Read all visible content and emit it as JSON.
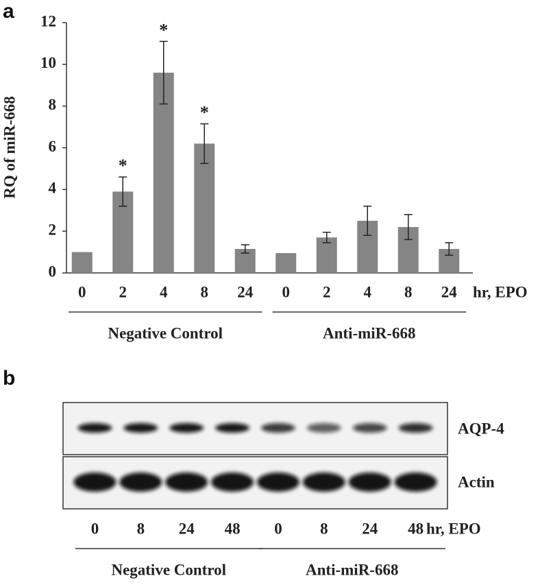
{
  "chart_data": {
    "type": "bar",
    "panel_label": "a",
    "ylabel": "RQ of miR-668",
    "x_unit": "hr, EPO",
    "categories": [
      "0",
      "2",
      "4",
      "8",
      "24",
      "0",
      "2",
      "4",
      "8",
      "24"
    ],
    "groups": [
      "Negative Control",
      "Anti-miR-668"
    ],
    "series": [
      {
        "color": "#858585",
        "values": [
          1.0,
          3.9,
          9.6,
          6.2,
          1.15,
          0.95,
          1.7,
          2.5,
          2.2,
          1.15
        ],
        "errors": [
          0,
          0.7,
          1.5,
          0.95,
          0.2,
          0,
          0.25,
          0.7,
          0.6,
          0.3
        ],
        "markers": [
          null,
          "*",
          "*",
          "*",
          null,
          null,
          null,
          null,
          null,
          null
        ]
      }
    ],
    "ylim": [
      0,
      12
    ],
    "yticks": [
      0,
      2,
      4,
      6,
      8,
      10,
      12
    ],
    "grid": false
  },
  "blot": {
    "panel_label": "b",
    "rows": [
      "AQP-4",
      "Actin"
    ],
    "lanes": [
      "0",
      "8",
      "24",
      "48",
      "0",
      "8",
      "24",
      "48"
    ],
    "x_unit": "hr, EPO",
    "groups": [
      "Negative Control",
      "Anti-miR-668"
    ]
  }
}
